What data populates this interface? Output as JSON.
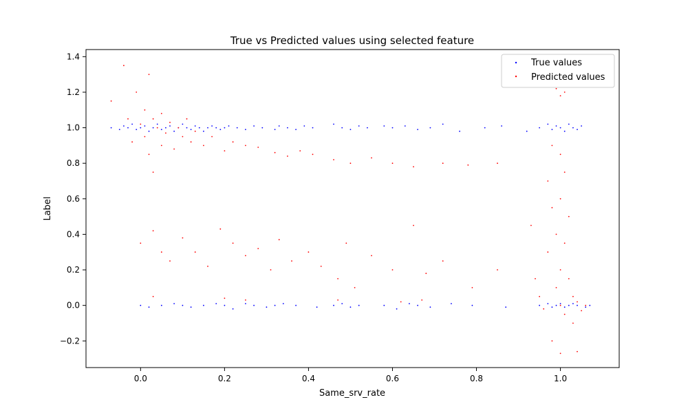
{
  "chart_data": {
    "type": "scatter",
    "title": "True vs Predicted values using selected feature",
    "xlabel": "Same_srv_rate",
    "ylabel": "Label",
    "xlim": [
      -0.13,
      1.14
    ],
    "ylim": [
      -0.35,
      1.44
    ],
    "xticks": [
      0.0,
      0.2,
      0.4,
      0.6,
      0.8,
      1.0
    ],
    "xtick_labels": [
      "0.0",
      "0.2",
      "0.4",
      "0.6",
      "0.8",
      "1.0"
    ],
    "yticks": [
      -0.2,
      0.0,
      0.2,
      0.4,
      0.6,
      0.8,
      1.0,
      1.2,
      1.4
    ],
    "ytick_labels": [
      "−0.2",
      "0.0",
      "0.2",
      "0.4",
      "0.6",
      "0.8",
      "1.0",
      "1.2",
      "1.4"
    ],
    "legend_position": "upper right",
    "grid": false,
    "series": [
      {
        "name": "True values",
        "color": "#0000ff",
        "marker": "point",
        "values": [
          [
            -0.07,
            1.0
          ],
          [
            -0.05,
            0.99
          ],
          [
            -0.04,
            1.01
          ],
          [
            -0.03,
            1.0
          ],
          [
            -0.02,
            1.02
          ],
          [
            -0.01,
            0.99
          ],
          [
            0.0,
            1.0
          ],
          [
            0.01,
            1.01
          ],
          [
            0.02,
            0.98
          ],
          [
            0.03,
            1.0
          ],
          [
            0.04,
            1.02
          ],
          [
            0.05,
            0.99
          ],
          [
            0.06,
            1.0
          ],
          [
            0.07,
            1.01
          ],
          [
            0.08,
            0.98
          ],
          [
            0.09,
            1.0
          ],
          [
            0.1,
            1.02
          ],
          [
            0.11,
            1.0
          ],
          [
            0.12,
            0.99
          ],
          [
            0.13,
            1.01
          ],
          [
            0.14,
            1.0
          ],
          [
            0.15,
            0.98
          ],
          [
            0.16,
            1.0
          ],
          [
            0.17,
            1.01
          ],
          [
            0.18,
            1.0
          ],
          [
            0.19,
            0.99
          ],
          [
            0.2,
            1.0
          ],
          [
            0.21,
            1.01
          ],
          [
            0.23,
            1.0
          ],
          [
            0.25,
            0.99
          ],
          [
            0.27,
            1.01
          ],
          [
            0.29,
            1.0
          ],
          [
            0.32,
            0.99
          ],
          [
            0.33,
            1.01
          ],
          [
            0.35,
            1.0
          ],
          [
            0.37,
            0.99
          ],
          [
            0.39,
            1.01
          ],
          [
            0.41,
            1.0
          ],
          [
            0.46,
            1.02
          ],
          [
            0.48,
            1.0
          ],
          [
            0.5,
            0.99
          ],
          [
            0.52,
            1.01
          ],
          [
            0.54,
            1.0
          ],
          [
            0.58,
            1.01
          ],
          [
            0.6,
            1.0
          ],
          [
            0.63,
            1.01
          ],
          [
            0.66,
            0.99
          ],
          [
            0.69,
            1.0
          ],
          [
            0.72,
            1.02
          ],
          [
            0.76,
            0.98
          ],
          [
            0.82,
            1.0
          ],
          [
            0.86,
            1.01
          ],
          [
            0.92,
            0.98
          ],
          [
            0.95,
            1.0
          ],
          [
            0.97,
            1.02
          ],
          [
            0.98,
            0.99
          ],
          [
            0.99,
            1.01
          ],
          [
            1.0,
            1.0
          ],
          [
            1.01,
            0.98
          ],
          [
            1.02,
            1.02
          ],
          [
            1.03,
            1.0
          ],
          [
            1.04,
            0.99
          ],
          [
            1.05,
            1.01
          ],
          [
            0.0,
            0.0
          ],
          [
            0.02,
            -0.01
          ],
          [
            0.05,
            0.0
          ],
          [
            0.08,
            0.01
          ],
          [
            0.1,
            0.0
          ],
          [
            0.12,
            -0.01
          ],
          [
            0.15,
            0.0
          ],
          [
            0.18,
            0.01
          ],
          [
            0.2,
            0.0
          ],
          [
            0.22,
            -0.02
          ],
          [
            0.25,
            0.01
          ],
          [
            0.27,
            0.0
          ],
          [
            0.3,
            -0.01
          ],
          [
            0.32,
            0.0
          ],
          [
            0.34,
            0.01
          ],
          [
            0.37,
            0.0
          ],
          [
            0.42,
            -0.01
          ],
          [
            0.46,
            0.0
          ],
          [
            0.48,
            0.01
          ],
          [
            0.5,
            -0.01
          ],
          [
            0.52,
            0.0
          ],
          [
            0.58,
            0.0
          ],
          [
            0.61,
            -0.02
          ],
          [
            0.64,
            0.01
          ],
          [
            0.66,
            0.0
          ],
          [
            0.69,
            -0.01
          ],
          [
            0.74,
            0.01
          ],
          [
            0.79,
            0.0
          ],
          [
            0.87,
            -0.01
          ],
          [
            0.95,
            0.0
          ],
          [
            0.97,
            0.01
          ],
          [
            0.98,
            -0.01
          ],
          [
            0.99,
            0.0
          ],
          [
            1.0,
            0.01
          ],
          [
            1.01,
            -0.01
          ],
          [
            1.02,
            0.0
          ],
          [
            1.03,
            0.01
          ],
          [
            1.04,
            0.0
          ],
          [
            1.06,
            -0.01
          ],
          [
            1.07,
            0.0
          ]
        ]
      },
      {
        "name": "Predicted values",
        "color": "#ff0000",
        "marker": "point",
        "values": [
          [
            -0.07,
            1.15
          ],
          [
            -0.04,
            1.35
          ],
          [
            -0.03,
            1.05
          ],
          [
            -0.02,
            0.92
          ],
          [
            -0.01,
            1.2
          ],
          [
            0.0,
            1.02
          ],
          [
            0.01,
            1.1
          ],
          [
            0.01,
            0.95
          ],
          [
            0.02,
            1.3
          ],
          [
            0.02,
            0.85
          ],
          [
            0.03,
            1.05
          ],
          [
            0.03,
            0.75
          ],
          [
            0.04,
            1.0
          ],
          [
            0.05,
            0.9
          ],
          [
            0.05,
            1.08
          ],
          [
            0.06,
            0.97
          ],
          [
            0.07,
            1.03
          ],
          [
            0.08,
            0.88
          ],
          [
            0.09,
            1.0
          ],
          [
            0.1,
            0.95
          ],
          [
            0.11,
            1.05
          ],
          [
            0.12,
            0.92
          ],
          [
            0.13,
            0.98
          ],
          [
            0.15,
            0.9
          ],
          [
            0.17,
            0.95
          ],
          [
            0.2,
            0.87
          ],
          [
            0.22,
            0.92
          ],
          [
            0.25,
            0.9
          ],
          [
            0.28,
            0.89
          ],
          [
            0.32,
            0.86
          ],
          [
            0.35,
            0.84
          ],
          [
            0.38,
            0.87
          ],
          [
            0.41,
            0.85
          ],
          [
            0.46,
            0.82
          ],
          [
            0.5,
            0.8
          ],
          [
            0.55,
            0.83
          ],
          [
            0.6,
            0.8
          ],
          [
            0.65,
            0.78
          ],
          [
            0.72,
            0.8
          ],
          [
            0.78,
            0.79
          ],
          [
            0.85,
            0.8
          ],
          [
            0.0,
            0.35
          ],
          [
            0.03,
            0.42
          ],
          [
            0.05,
            0.3
          ],
          [
            0.07,
            0.25
          ],
          [
            0.1,
            0.38
          ],
          [
            0.13,
            0.3
          ],
          [
            0.16,
            0.22
          ],
          [
            0.19,
            0.43
          ],
          [
            0.22,
            0.35
          ],
          [
            0.25,
            0.28
          ],
          [
            0.28,
            0.32
          ],
          [
            0.31,
            0.2
          ],
          [
            0.33,
            0.37
          ],
          [
            0.36,
            0.25
          ],
          [
            0.4,
            0.3
          ],
          [
            0.43,
            0.22
          ],
          [
            0.47,
            0.15
          ],
          [
            0.49,
            0.35
          ],
          [
            0.51,
            0.1
          ],
          [
            0.55,
            0.28
          ],
          [
            0.6,
            0.2
          ],
          [
            0.65,
            0.45
          ],
          [
            0.68,
            0.18
          ],
          [
            0.72,
            0.25
          ],
          [
            0.79,
            0.1
          ],
          [
            0.85,
            0.2
          ],
          [
            0.03,
            0.05
          ],
          [
            0.2,
            0.04
          ],
          [
            0.25,
            0.03
          ],
          [
            0.47,
            0.03
          ],
          [
            0.62,
            0.02
          ],
          [
            0.67,
            0.03
          ],
          [
            0.93,
            0.45
          ],
          [
            0.94,
            0.15
          ],
          [
            0.95,
            0.05
          ],
          [
            0.96,
            -0.02
          ],
          [
            0.97,
            0.3
          ],
          [
            0.97,
            0.7
          ],
          [
            0.98,
            0.9
          ],
          [
            0.98,
            0.55
          ],
          [
            0.99,
            0.1
          ],
          [
            0.99,
            0.4
          ],
          [
            1.0,
            0.85
          ],
          [
            1.0,
            0.6
          ],
          [
            1.0,
            0.2
          ],
          [
            1.0,
            0.0
          ],
          [
            1.01,
            0.75
          ],
          [
            1.01,
            0.35
          ],
          [
            1.01,
            -0.05
          ],
          [
            1.02,
            0.5
          ],
          [
            1.02,
            0.15
          ],
          [
            1.03,
            0.05
          ],
          [
            1.03,
            -0.1
          ],
          [
            1.04,
            0.02
          ],
          [
            1.05,
            -0.03
          ],
          [
            1.06,
            0.0
          ],
          [
            0.99,
            1.22
          ],
          [
            1.0,
            1.18
          ],
          [
            1.01,
            1.2
          ],
          [
            0.98,
            -0.2
          ],
          [
            1.0,
            -0.27
          ],
          [
            1.04,
            -0.26
          ]
        ]
      }
    ]
  }
}
